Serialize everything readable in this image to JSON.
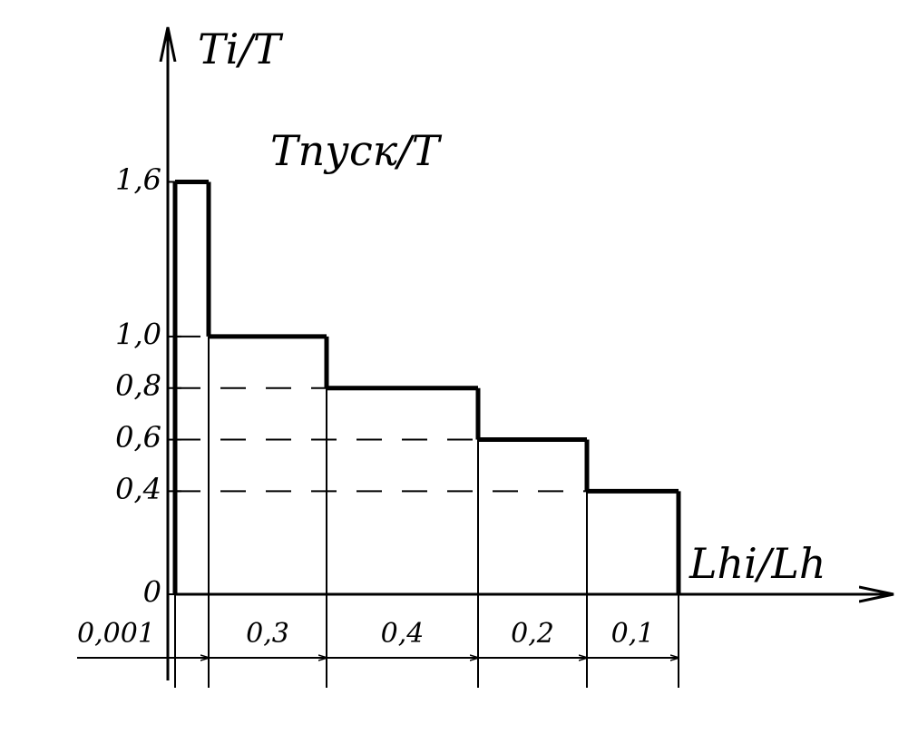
{
  "chart_data": {
    "type": "step",
    "title": "Tпуск/T",
    "y_label": "Ti/T",
    "x_label": "Lhi/Lh",
    "categories": [
      "0,001",
      "0,3",
      "0,4",
      "0,2",
      "0,1"
    ],
    "values": [
      1.6,
      1.0,
      0.8,
      0.6,
      0.4
    ],
    "color": "#000000",
    "ylim": [
      0,
      2.2
    ],
    "yticks": [
      0,
      {
        "value": 0.4,
        "label": "0,4"
      },
      {
        "value": 0.6,
        "label": "0,6"
      },
      {
        "value": 0.8,
        "label": "0,8"
      },
      {
        "value": 1.0,
        "label": "1,0"
      },
      {
        "value": 1.6,
        "label": "1,6"
      }
    ]
  }
}
